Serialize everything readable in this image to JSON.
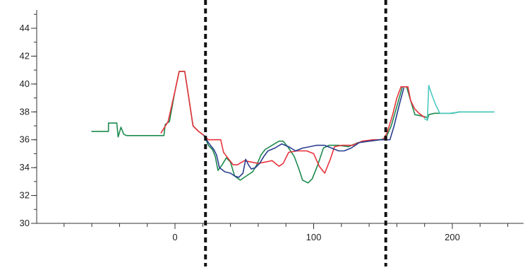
{
  "chart_data": {
    "type": "line",
    "title": "",
    "xlabel": "",
    "ylabel": "",
    "xlim": [
      -100,
      250
    ],
    "ylim": [
      30,
      45
    ],
    "x_ticks_labeled": [
      0,
      100,
      200
    ],
    "x_minor_step": 20,
    "y_ticks": [
      30,
      32,
      34,
      36,
      38,
      40,
      42,
      44
    ],
    "y_minor_step": 1,
    "grid": false,
    "legend": "none",
    "vertical_dashed_lines": [
      22,
      152
    ],
    "series": [
      {
        "color": "#1d8a4e",
        "points": [
          [
            -60,
            36.6
          ],
          [
            -48,
            36.6
          ],
          [
            -48,
            37.2
          ],
          [
            -42,
            37.2
          ],
          [
            -41,
            36.2
          ],
          [
            -39,
            36.9
          ],
          [
            -37,
            36.4
          ],
          [
            -35,
            36.3
          ],
          [
            -8,
            36.3
          ],
          [
            -7,
            37.1
          ],
          [
            -4,
            37.3
          ],
          [
            0,
            39.5
          ],
          [
            3,
            40.9
          ],
          [
            7,
            40.9
          ],
          [
            10,
            39.0
          ],
          [
            13,
            37.0
          ],
          [
            17,
            36.6
          ],
          [
            21,
            36.3
          ],
          [
            24,
            35.6
          ],
          [
            27,
            35.3
          ],
          [
            29,
            34.8
          ],
          [
            31,
            33.8
          ],
          [
            34,
            34.2
          ],
          [
            37,
            34.7
          ],
          [
            40,
            34.4
          ],
          [
            43,
            33.4
          ],
          [
            47,
            33.1
          ],
          [
            50,
            33.3
          ],
          [
            53,
            33.5
          ],
          [
            56,
            33.7
          ],
          [
            59,
            34.2
          ],
          [
            62,
            34.9
          ],
          [
            65,
            35.3
          ],
          [
            70,
            35.6
          ],
          [
            75,
            35.9
          ],
          [
            78,
            35.9
          ],
          [
            82,
            35.4
          ],
          [
            86,
            34.8
          ],
          [
            89,
            34.0
          ],
          [
            92,
            33.1
          ],
          [
            96,
            32.9
          ],
          [
            99,
            33.2
          ],
          [
            103,
            34.2
          ],
          [
            107,
            35.4
          ],
          [
            111,
            35.6
          ],
          [
            118,
            35.6
          ],
          [
            125,
            35.5
          ],
          [
            132,
            35.8
          ],
          [
            140,
            35.9
          ],
          [
            148,
            36.0
          ],
          [
            152,
            36.1
          ],
          [
            156,
            37.0
          ],
          [
            160,
            38.4
          ],
          [
            164,
            39.8
          ],
          [
            167,
            39.8
          ],
          [
            170,
            38.8
          ],
          [
            173,
            37.8
          ],
          [
            178,
            37.7
          ],
          [
            182,
            37.6
          ],
          [
            182,
            37.4
          ],
          [
            183,
            37.8
          ],
          [
            187,
            37.9
          ],
          [
            192,
            37.9
          ],
          [
            200,
            37.9
          ],
          [
            205,
            38.0
          ],
          [
            230,
            38.0
          ]
        ]
      },
      {
        "color": "#e8333c",
        "points": [
          [
            -10,
            36.5
          ],
          [
            -5,
            37.3
          ],
          [
            0,
            39.5
          ],
          [
            3,
            40.9
          ],
          [
            7,
            40.9
          ],
          [
            10,
            39.0
          ],
          [
            13,
            37.0
          ],
          [
            17,
            36.6
          ],
          [
            21,
            36.3
          ],
          [
            24,
            36.0
          ],
          [
            29,
            36.0
          ],
          [
            33,
            36.0
          ],
          [
            35,
            35.1
          ],
          [
            38,
            34.7
          ],
          [
            42,
            34.2
          ],
          [
            45,
            34.2
          ],
          [
            50,
            34.5
          ],
          [
            55,
            34.4
          ],
          [
            60,
            34.3
          ],
          [
            65,
            34.4
          ],
          [
            70,
            34.5
          ],
          [
            75,
            34.1
          ],
          [
            78,
            34.3
          ],
          [
            82,
            35.1
          ],
          [
            88,
            35.2
          ],
          [
            95,
            35.2
          ],
          [
            100,
            35.0
          ],
          [
            104,
            34.1
          ],
          [
            108,
            33.6
          ],
          [
            112,
            34.6
          ],
          [
            115,
            35.5
          ],
          [
            120,
            35.6
          ],
          [
            128,
            35.6
          ],
          [
            135,
            35.9
          ],
          [
            143,
            36.0
          ],
          [
            150,
            36.0
          ],
          [
            153,
            36.5
          ],
          [
            157,
            37.8
          ],
          [
            160,
            39.0
          ],
          [
            163,
            39.8
          ],
          [
            168,
            39.8
          ],
          [
            170,
            38.8
          ],
          [
            173,
            38.2
          ],
          [
            176,
            37.9
          ],
          [
            180,
            37.6
          ]
        ]
      },
      {
        "color": "#2a3d8f",
        "points": [
          [
            21,
            36.3
          ],
          [
            24,
            35.8
          ],
          [
            28,
            35.3
          ],
          [
            30,
            34.9
          ],
          [
            32,
            34.0
          ],
          [
            36,
            33.7
          ],
          [
            40,
            33.6
          ],
          [
            43,
            33.4
          ],
          [
            46,
            33.3
          ],
          [
            49,
            33.6
          ],
          [
            51,
            34.6
          ],
          [
            53,
            34.2
          ],
          [
            55,
            33.9
          ],
          [
            58,
            34.0
          ],
          [
            61,
            34.3
          ],
          [
            64,
            34.8
          ],
          [
            67,
            35.2
          ],
          [
            72,
            35.4
          ],
          [
            77,
            35.7
          ],
          [
            82,
            35.5
          ],
          [
            87,
            35.2
          ],
          [
            92,
            35.4
          ],
          [
            97,
            35.5
          ],
          [
            102,
            35.6
          ],
          [
            108,
            35.6
          ],
          [
            113,
            35.4
          ],
          [
            118,
            35.2
          ],
          [
            122,
            35.2
          ],
          [
            127,
            35.4
          ],
          [
            133,
            35.8
          ],
          [
            140,
            35.9
          ],
          [
            148,
            36.0
          ],
          [
            155,
            36.0
          ],
          [
            158,
            37.0
          ],
          [
            162,
            38.6
          ],
          [
            165,
            39.7
          ]
        ]
      },
      {
        "color": "#4cc9c0",
        "points": [
          [
            180,
            37.5
          ],
          [
            182,
            37.4
          ],
          [
            183,
            39.9
          ],
          [
            185,
            39.3
          ],
          [
            188,
            38.5
          ],
          [
            191,
            37.9
          ],
          [
            198,
            37.9
          ],
          [
            206,
            38.0
          ],
          [
            230,
            38.0
          ]
        ]
      }
    ]
  }
}
